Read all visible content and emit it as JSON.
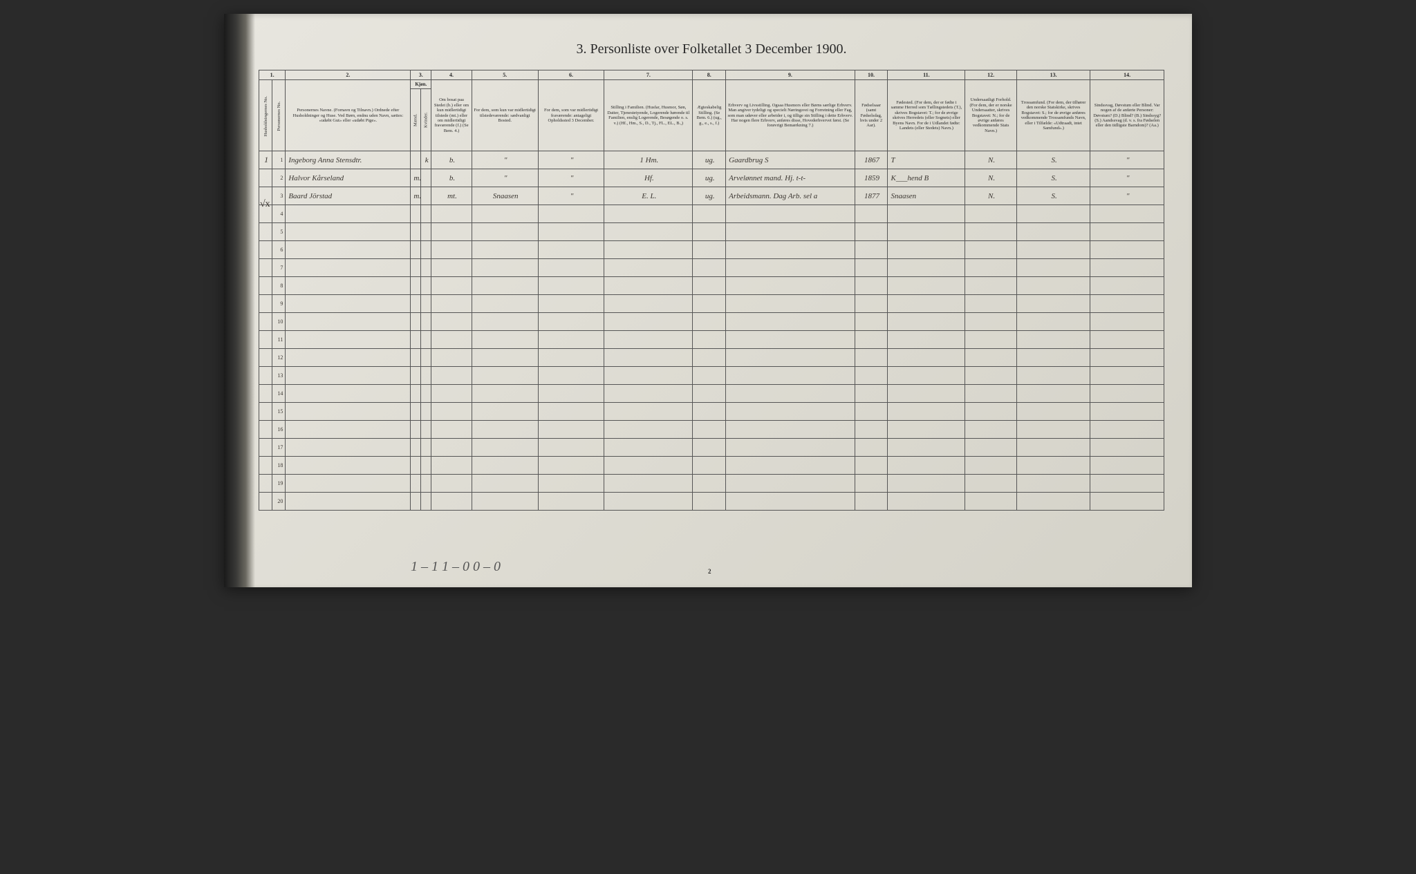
{
  "title": "3.  Personliste over Folketallet 3 December 1900.",
  "col_nums": [
    "1.",
    "2.",
    "3.",
    "4.",
    "5.",
    "6.",
    "7.",
    "8.",
    "9.",
    "10.",
    "11.",
    "12.",
    "13.",
    "14."
  ],
  "headers": {
    "c1a": "Husholdningernes No.",
    "c1b": "Personernes No.",
    "c2": "Personernes Navne.\n(Fornavn og Tilnavn.)\nOrdnede efter Husholdninger og Huse.\nVed Børn, endnu uden Navn, sættes: «udøbt Gut» eller «udøbt Pige».",
    "c3_top": "Kjøn.",
    "c3a": "Mænd.",
    "c3b": "Kvinder.",
    "c3_bot": "m. | k.",
    "c4": "Om bosat paa Stedet (b.) eller om kun midlertidigt tilstede (mt.) eller om midlertidigt fraværende (f.)\n(Se Bem. 4.)",
    "c5": "For dem, som kun var midlertidigt tilstedeværende:\nsædvanligt Bosted.",
    "c6": "For dem, som var midlertidigt fraværende:\nantageligt Opholdssted 3 December.",
    "c7": "Stilling i Familien.\n(Husfar, Husmor, Søn, Datter, Tjenestetyende, Logerende hørende til Familien, enslig Logerende, Besøgende o. s. v.)\n(Hf., Hm., S., D., Tj., FL., EL., B.,)",
    "c8": "Ægteskabelig Stilling.\n(Se Bem. 6.)\n(ug., g., e., s., f.)",
    "c9": "Erhverv og Livsstilling.\nOgsaa Husmors eller Børns særlige Erhverv. Man angiver tydeligt og specielt Næringsvei og Forretning eller Fag, som man udøver eller arbeider i, og tillige sin Stilling i dette Erhverv. Har nogen flere Erhverv, anføres disse, Hovederhvervet først.\n(Se forøvrigt Bemærkning 7.)",
    "c10": "Fødselsaar\n(samt Fødselsdag, hvis under 2 Aar).",
    "c11": "Fødested.\n(For dem, der er fødte i samme Herred som Tællingstedets (T.), skrives Bogstavet: T.; for de øvrige skrives Herredets (eller Sognets) eller Byens Navn. For de i Udlandet fødte: Landets (eller Stedets) Navn.)",
    "c12": "Undersaatligt Forhold.\n(For dem, der er norske Undersaatter, skrives Bogstavet: N.; for de øvrige anføres vedkommende Stats Navn.)",
    "c13": "Trossamfund.\n(For dem, der tilhører den norske Statskirke, skrives Bogstavet: S.; for de øvrige anføres vedkommende Trossamfunds Navn, eller i Tilfælde: «Udtraadt, intet Samfund».)",
    "c14": "Sindssvag, Døvstum eller Blind.\nVar nogen af de anførte Personer:\nDøvstum? (D.)\nBlind? (B.)\nSindssyg? (S.)\nAandssvag (d. v. s. fra Fødselen eller den tidligste Barndom)? (Aa.)"
  },
  "col_widths": {
    "c1a": 18,
    "c1b": 18,
    "c2": 170,
    "c3a": 14,
    "c3b": 14,
    "c4": 55,
    "c5": 90,
    "c6": 90,
    "c7": 120,
    "c8": 45,
    "c9": 175,
    "c10": 45,
    "c11": 105,
    "c12": 70,
    "c13": 100,
    "c14": 100
  },
  "rows": [
    {
      "hus": "1",
      "pers": "1",
      "name": "Ingeborg Anna Stensdtr.",
      "sex": "k",
      "res": "b.",
      "c5": "\"",
      "c6": "\"",
      "fam": "1 Hm.",
      "mar": "ug.",
      "occ": "Gaardbrug S",
      "year": "1867",
      "birthplace": "T",
      "nat": "N.",
      "rel": "S.",
      "dis": "\""
    },
    {
      "hus": "",
      "pers": "2",
      "name": "Halvor Kårseland",
      "sex": "m.",
      "res": "b.",
      "c5": "\"",
      "c6": "\"",
      "fam": "Hf.",
      "mar": "ug.",
      "occ": "Arvelønnet mand. Hj. t-t-",
      "year": "1859",
      "birthplace": "K___hend B",
      "nat": "N.",
      "rel": "S.",
      "dis": "\""
    },
    {
      "hus": "",
      "pers": "3",
      "name": "Baard Jörstad",
      "sex": "m.",
      "res": "mt.",
      "c5": "Snaasen",
      "c6": "\"",
      "fam": "E. L.",
      "mar": "ug.",
      "occ": "Arbeidsmann. Dag Arb. sel a",
      "year": "1877",
      "birthplace": "Snaasen",
      "nat": "N.",
      "rel": "S.",
      "dis": "\""
    }
  ],
  "empty_rows": [
    "4",
    "5",
    "6",
    "7",
    "8",
    "9",
    "10",
    "11",
    "12",
    "13",
    "14",
    "15",
    "16",
    "17",
    "18",
    "19",
    "20"
  ],
  "footer_scrawl": "1 – 1    1 – 0    0 – 0",
  "page_number": "2",
  "margin_mark": "√x",
  "colors": {
    "paper": "#e0ddd3",
    "ink": "#2a2a2a",
    "handwriting": "#3a3530",
    "border": "#555555"
  }
}
